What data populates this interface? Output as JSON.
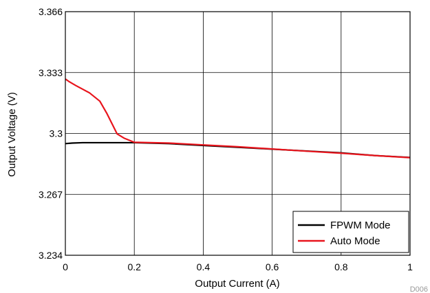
{
  "chart_data": {
    "type": "line",
    "title": "",
    "xlabel": "Output Current (A)",
    "ylabel": "Output Voltage (V)",
    "xlim": [
      0,
      1
    ],
    "ylim": [
      3.234,
      3.366
    ],
    "xticks": [
      "0",
      "0.2",
      "0.4",
      "0.6",
      "0.8",
      "1"
    ],
    "yticks": [
      "3.234",
      "3.267",
      "3.3",
      "3.333",
      "3.366"
    ],
    "grid": true,
    "legend_position": "bottom-right",
    "series": [
      {
        "name": "FPWM Mode",
        "color": "#000000",
        "x": [
          0,
          0.02,
          0.05,
          0.08,
          0.1,
          0.15,
          0.2,
          0.3,
          0.4,
          0.5,
          0.6,
          0.7,
          0.8,
          0.9,
          1.0
        ],
        "y": [
          3.2945,
          3.2948,
          3.295,
          3.295,
          3.295,
          3.295,
          3.295,
          3.2945,
          3.2935,
          3.2925,
          3.2915,
          3.2905,
          3.2895,
          3.288,
          3.287
        ]
      },
      {
        "name": "Auto Mode",
        "color": "#e8141c",
        "x": [
          0,
          0.01,
          0.03,
          0.05,
          0.07,
          0.1,
          0.12,
          0.15,
          0.17,
          0.2,
          0.3,
          0.4,
          0.5,
          0.6,
          0.7,
          0.8,
          0.9,
          1.0
        ],
        "y": [
          3.3295,
          3.3282,
          3.326,
          3.324,
          3.322,
          3.3175,
          3.311,
          3.2998,
          3.2975,
          3.2952,
          3.2948,
          3.2938,
          3.2928,
          3.2916,
          3.2904,
          3.2893,
          3.288,
          3.2869
        ]
      }
    ]
  },
  "figure_id": "D006",
  "colors": {
    "frame": "#000000",
    "grid": "#000000",
    "background": "#ffffff"
  }
}
